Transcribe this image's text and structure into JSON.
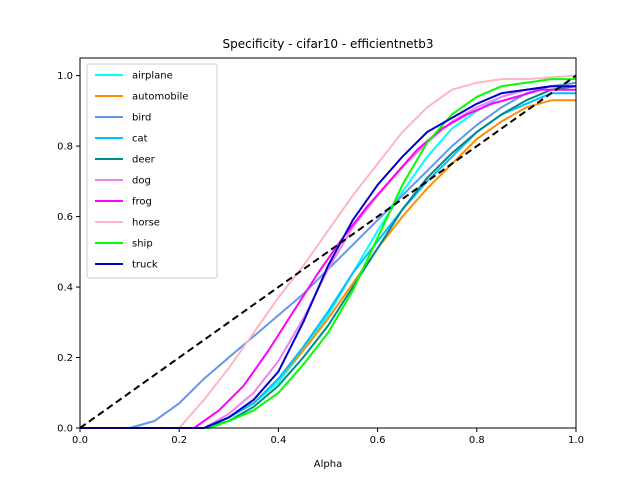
{
  "chart_data": {
    "type": "line",
    "title": "Specificity - cifar10 - efficientnetb3",
    "xlabel": "Alpha",
    "ylabel": "",
    "xlim": [
      0.0,
      1.0
    ],
    "ylim": [
      0.0,
      1.05
    ],
    "xticks": [
      "0.0",
      "0.2",
      "0.4",
      "0.6",
      "0.8",
      "1.0"
    ],
    "yticks": [
      "0.0",
      "0.2",
      "0.4",
      "0.6",
      "0.8",
      "1.0"
    ],
    "grid": false,
    "legend_position": "upper left",
    "reference_line": {
      "style": "dashed",
      "color": "#000000",
      "points": [
        [
          0.0,
          0.0
        ],
        [
          1.0,
          1.0
        ]
      ]
    },
    "series": [
      {
        "name": "airplane",
        "color": "#00ffff",
        "points": [
          [
            0,
            0
          ],
          [
            0.25,
            0
          ],
          [
            0.3,
            0.03
          ],
          [
            0.35,
            0.07
          ],
          [
            0.4,
            0.13
          ],
          [
            0.45,
            0.22
          ],
          [
            0.5,
            0.32
          ],
          [
            0.55,
            0.44
          ],
          [
            0.6,
            0.56
          ],
          [
            0.65,
            0.67
          ],
          [
            0.7,
            0.77
          ],
          [
            0.75,
            0.85
          ],
          [
            0.8,
            0.9
          ],
          [
            0.85,
            0.94
          ],
          [
            0.9,
            0.96
          ],
          [
            0.95,
            0.97
          ],
          [
            1.0,
            0.97
          ]
        ]
      },
      {
        "name": "automobile",
        "color": "#ff8c00",
        "points": [
          [
            0,
            0
          ],
          [
            0.25,
            0
          ],
          [
            0.3,
            0.03
          ],
          [
            0.35,
            0.07
          ],
          [
            0.4,
            0.14
          ],
          [
            0.45,
            0.22
          ],
          [
            0.5,
            0.31
          ],
          [
            0.55,
            0.41
          ],
          [
            0.6,
            0.51
          ],
          [
            0.65,
            0.6
          ],
          [
            0.7,
            0.68
          ],
          [
            0.75,
            0.75
          ],
          [
            0.8,
            0.82
          ],
          [
            0.85,
            0.87
          ],
          [
            0.9,
            0.91
          ],
          [
            0.95,
            0.93
          ],
          [
            1.0,
            0.93
          ]
        ]
      },
      {
        "name": "bird",
        "color": "#6495ed",
        "points": [
          [
            0,
            0
          ],
          [
            0.1,
            0
          ],
          [
            0.15,
            0.02
          ],
          [
            0.2,
            0.07
          ],
          [
            0.25,
            0.14
          ],
          [
            0.3,
            0.2
          ],
          [
            0.35,
            0.26
          ],
          [
            0.4,
            0.32
          ],
          [
            0.45,
            0.38
          ],
          [
            0.5,
            0.45
          ],
          [
            0.55,
            0.52
          ],
          [
            0.6,
            0.59
          ],
          [
            0.65,
            0.66
          ],
          [
            0.7,
            0.73
          ],
          [
            0.75,
            0.8
          ],
          [
            0.8,
            0.86
          ],
          [
            0.85,
            0.91
          ],
          [
            0.9,
            0.95
          ],
          [
            0.95,
            0.97
          ],
          [
            1.0,
            0.98
          ]
        ]
      },
      {
        "name": "cat",
        "color": "#00bfff",
        "points": [
          [
            0,
            0
          ],
          [
            0.25,
            0
          ],
          [
            0.3,
            0.03
          ],
          [
            0.35,
            0.07
          ],
          [
            0.4,
            0.14
          ],
          [
            0.45,
            0.23
          ],
          [
            0.5,
            0.33
          ],
          [
            0.55,
            0.44
          ],
          [
            0.6,
            0.53
          ],
          [
            0.65,
            0.62
          ],
          [
            0.7,
            0.7
          ],
          [
            0.75,
            0.77
          ],
          [
            0.8,
            0.84
          ],
          [
            0.85,
            0.89
          ],
          [
            0.9,
            0.92
          ],
          [
            0.95,
            0.95
          ],
          [
            1.0,
            0.95
          ]
        ]
      },
      {
        "name": "deer",
        "color": "#008b8b",
        "points": [
          [
            0,
            0
          ],
          [
            0.25,
            0
          ],
          [
            0.3,
            0.02
          ],
          [
            0.35,
            0.06
          ],
          [
            0.4,
            0.12
          ],
          [
            0.45,
            0.2
          ],
          [
            0.5,
            0.29
          ],
          [
            0.55,
            0.4
          ],
          [
            0.6,
            0.51
          ],
          [
            0.65,
            0.62
          ],
          [
            0.7,
            0.71
          ],
          [
            0.75,
            0.78
          ],
          [
            0.8,
            0.84
          ],
          [
            0.85,
            0.89
          ],
          [
            0.9,
            0.93
          ],
          [
            0.95,
            0.96
          ],
          [
            1.0,
            0.97
          ]
        ]
      },
      {
        "name": "dog",
        "color": "#ee82ee",
        "points": [
          [
            0,
            0
          ],
          [
            0.25,
            0
          ],
          [
            0.3,
            0.04
          ],
          [
            0.35,
            0.1
          ],
          [
            0.4,
            0.19
          ],
          [
            0.45,
            0.31
          ],
          [
            0.5,
            0.45
          ],
          [
            0.55,
            0.57
          ],
          [
            0.6,
            0.66
          ],
          [
            0.65,
            0.74
          ],
          [
            0.7,
            0.81
          ],
          [
            0.75,
            0.87
          ],
          [
            0.8,
            0.91
          ],
          [
            0.85,
            0.94
          ],
          [
            0.9,
            0.96
          ],
          [
            0.95,
            0.97
          ],
          [
            1.0,
            0.97
          ]
        ]
      },
      {
        "name": "frog",
        "color": "#ff00ff",
        "points": [
          [
            0,
            0
          ],
          [
            0.23,
            0
          ],
          [
            0.28,
            0.05
          ],
          [
            0.33,
            0.12
          ],
          [
            0.38,
            0.22
          ],
          [
            0.43,
            0.33
          ],
          [
            0.48,
            0.44
          ],
          [
            0.53,
            0.54
          ],
          [
            0.58,
            0.63
          ],
          [
            0.63,
            0.71
          ],
          [
            0.68,
            0.79
          ],
          [
            0.73,
            0.85
          ],
          [
            0.78,
            0.89
          ],
          [
            0.83,
            0.92
          ],
          [
            0.88,
            0.94
          ],
          [
            0.93,
            0.96
          ],
          [
            1.0,
            0.96
          ]
        ]
      },
      {
        "name": "horse",
        "color": "#ffb6c1",
        "points": [
          [
            0,
            0
          ],
          [
            0.2,
            0
          ],
          [
            0.25,
            0.08
          ],
          [
            0.3,
            0.17
          ],
          [
            0.35,
            0.27
          ],
          [
            0.4,
            0.37
          ],
          [
            0.45,
            0.46
          ],
          [
            0.5,
            0.56
          ],
          [
            0.55,
            0.66
          ],
          [
            0.6,
            0.75
          ],
          [
            0.65,
            0.84
          ],
          [
            0.7,
            0.91
          ],
          [
            0.75,
            0.96
          ],
          [
            0.8,
            0.98
          ],
          [
            0.85,
            0.99
          ],
          [
            0.9,
            0.99
          ],
          [
            1.0,
            1.0
          ]
        ]
      },
      {
        "name": "ship",
        "color": "#00ff00",
        "points": [
          [
            0,
            0
          ],
          [
            0.26,
            0
          ],
          [
            0.3,
            0.02
          ],
          [
            0.35,
            0.05
          ],
          [
            0.4,
            0.1
          ],
          [
            0.45,
            0.18
          ],
          [
            0.5,
            0.27
          ],
          [
            0.55,
            0.39
          ],
          [
            0.6,
            0.54
          ],
          [
            0.65,
            0.69
          ],
          [
            0.7,
            0.81
          ],
          [
            0.75,
            0.89
          ],
          [
            0.8,
            0.94
          ],
          [
            0.85,
            0.97
          ],
          [
            0.9,
            0.98
          ],
          [
            0.95,
            0.99
          ],
          [
            1.0,
            0.99
          ]
        ]
      },
      {
        "name": "truck",
        "color": "#0000cd",
        "points": [
          [
            0,
            0
          ],
          [
            0.25,
            0
          ],
          [
            0.3,
            0.03
          ],
          [
            0.35,
            0.08
          ],
          [
            0.4,
            0.16
          ],
          [
            0.45,
            0.3
          ],
          [
            0.5,
            0.46
          ],
          [
            0.55,
            0.59
          ],
          [
            0.6,
            0.69
          ],
          [
            0.65,
            0.77
          ],
          [
            0.7,
            0.84
          ],
          [
            0.75,
            0.88
          ],
          [
            0.8,
            0.92
          ],
          [
            0.85,
            0.95
          ],
          [
            0.9,
            0.96
          ],
          [
            0.95,
            0.97
          ],
          [
            1.0,
            0.97
          ]
        ]
      }
    ]
  }
}
